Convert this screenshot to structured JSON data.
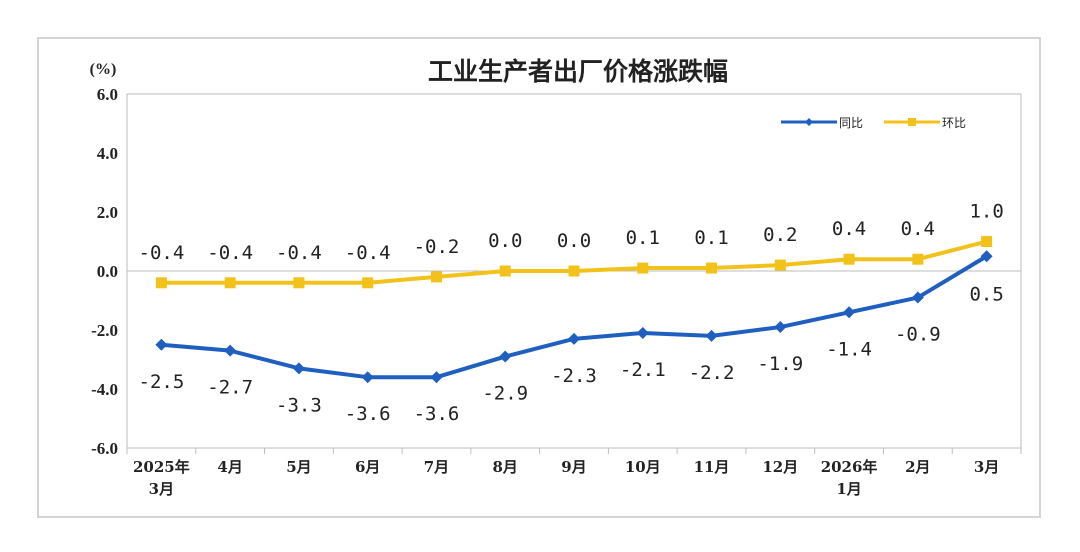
{
  "chart_data": {
    "type": "line",
    "title": "工业生产者出厂价格涨跌幅",
    "ylabel": "(%)",
    "ylim": [
      -6.0,
      6.0
    ],
    "y_ticks": [
      "6.0",
      "4.0",
      "2.0",
      "0.0",
      "-2.0",
      "-4.0",
      "-6.0"
    ],
    "categories": [
      [
        "2025年",
        "3月"
      ],
      [
        "4月"
      ],
      [
        "5月"
      ],
      [
        "6月"
      ],
      [
        "7月"
      ],
      [
        "8月"
      ],
      [
        "9月"
      ],
      [
        "10月"
      ],
      [
        "11月"
      ],
      [
        "12月"
      ],
      [
        "2026年",
        "1月"
      ],
      [
        "2月"
      ],
      [
        "3月"
      ]
    ],
    "series": [
      {
        "name": "同比",
        "color": "#1f5fbf",
        "marker": "diamond",
        "values": [
          -2.5,
          -2.7,
          -3.3,
          -3.6,
          -3.6,
          -2.9,
          -2.3,
          -2.1,
          -2.2,
          -1.9,
          -1.4,
          -0.9,
          0.5
        ],
        "labels": [
          "-2.5",
          "-2.7",
          "-3.3",
          "-3.6",
          "-3.6",
          "-2.9",
          "-2.3",
          "-2.1",
          "-2.2",
          "-1.9",
          "-1.4",
          "-0.9",
          "0.5"
        ]
      },
      {
        "name": "环比",
        "color": "#f2c21b",
        "marker": "square",
        "values": [
          -0.4,
          -0.4,
          -0.4,
          -0.4,
          -0.2,
          0.0,
          0.0,
          0.1,
          0.1,
          0.2,
          0.4,
          0.4,
          1.0
        ],
        "labels": [
          "-0.4",
          "-0.4",
          "-0.4",
          "-0.4",
          "-0.2",
          "0.0",
          "0.0",
          "0.1",
          "0.1",
          "0.2",
          "0.4",
          "0.4",
          "1.0"
        ]
      }
    ],
    "legend_position": "top-right",
    "grid": false
  }
}
